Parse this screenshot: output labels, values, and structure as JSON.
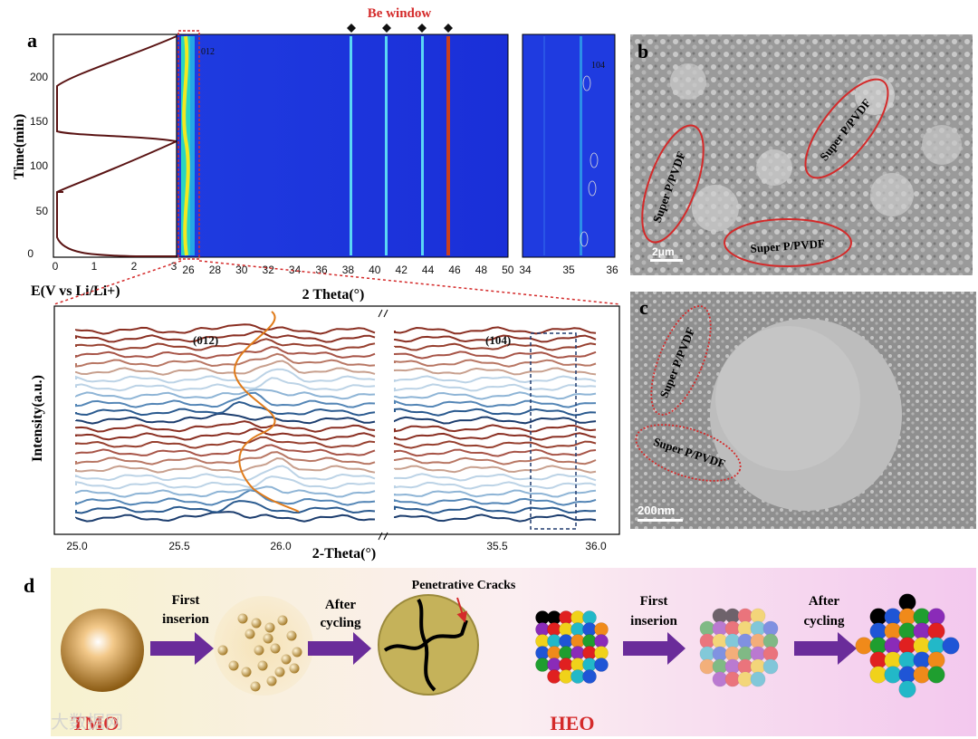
{
  "panels": {
    "a": "a",
    "b": "b",
    "c": "c",
    "d": "d"
  },
  "panel_a": {
    "be_window": "Be window",
    "y_label": "Time(min)",
    "y_ticks": [
      "0",
      "50",
      "100",
      "150",
      "200"
    ],
    "x_left_label": "E(V vs Li/Li+)",
    "x_left_ticks": [
      "0",
      "1",
      "2",
      "3"
    ],
    "heatmap_x_label": "2 Theta(°)",
    "heatmap_x_ticks": [
      "26",
      "28",
      "30",
      "32",
      "34",
      "36",
      "38",
      "40",
      "42",
      "44",
      "46",
      "48",
      "50"
    ],
    "heatmap_peak": "012",
    "side_x_ticks": [
      "34",
      "35",
      "36"
    ],
    "side_peak": "104",
    "lower_y_label": "Intensity(a.u.)",
    "lower_x_label": "2-Theta(°)",
    "lower_ticks_left": [
      "25.0",
      "25.5",
      "26.0"
    ],
    "lower_ticks_right": [
      "35.5",
      "36.0"
    ],
    "lower_peak_left": "(012)",
    "lower_peak_right": "(104)"
  },
  "panel_b": {
    "labels": [
      "Super P/PVDF",
      "Super P/PVDF",
      "Super P/PVDF"
    ],
    "scale": "2μm"
  },
  "panel_c": {
    "labels": [
      "Super P/PVDF",
      "Super P/PVDF"
    ],
    "scale": "200nm"
  },
  "panel_d": {
    "first_insertion_1": [
      "First",
      "inserion"
    ],
    "after_cycling_1": [
      "After",
      "cycling"
    ],
    "cracks": "Penetrative Cracks",
    "first_insertion_2": [
      "First",
      "inserion"
    ],
    "after_cycling_2": [
      "After",
      "cycling"
    ],
    "tmo": "TMO",
    "heo": "HEO"
  },
  "watermark": "大数据网",
  "colors": {
    "heatmap_bg": "#1a2fd8",
    "accent_red": "#d42a2a",
    "arrow": "#6a2c9a",
    "orange": "#e07b1a"
  }
}
